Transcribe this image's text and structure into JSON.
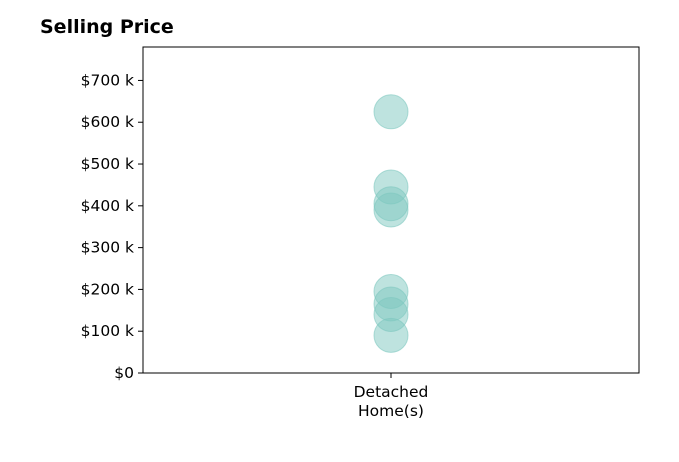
{
  "chart_data": {
    "type": "scatter",
    "title": "Selling Price",
    "xlabel": "",
    "ylabel": "",
    "categories": [
      "Detached\nHome(s)"
    ],
    "ylim": [
      0,
      780000
    ],
    "yticks": [
      0,
      100000,
      200000,
      300000,
      400000,
      500000,
      600000,
      700000
    ],
    "ytick_labels": [
      "$0",
      "$100 k",
      "$200 k",
      "$300 k",
      "$400 k",
      "$500 k",
      "$600 k",
      "$700 k"
    ],
    "series": [
      {
        "category": "Detached\nHome(s)",
        "values": [
          625000,
          445000,
          405000,
          390000,
          195000,
          165000,
          140000,
          90000
        ],
        "color": "#7ec8c0"
      }
    ],
    "grid": false,
    "legend": "none"
  }
}
